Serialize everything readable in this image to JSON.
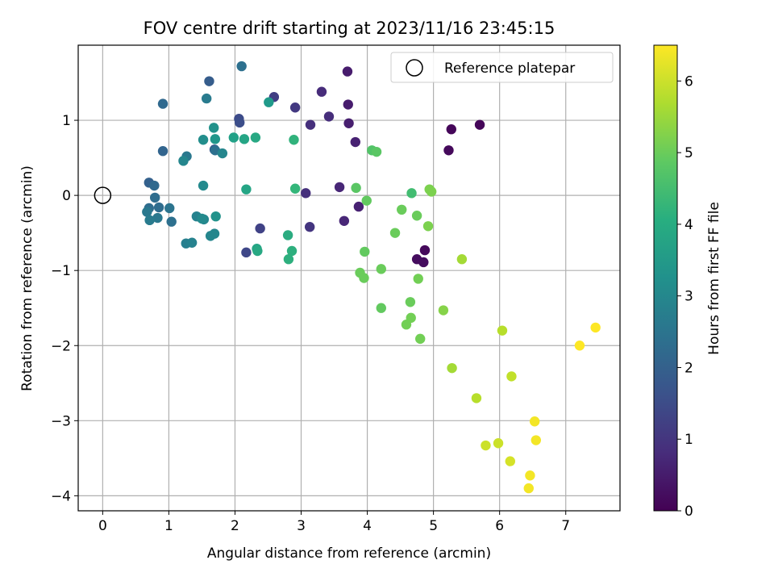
{
  "chart_data": {
    "type": "scatter",
    "title": "FOV centre drift starting at 2023/11/16 23:45:15",
    "xlabel": "Angular distance from reference (arcmin)",
    "ylabel": "Rotation from reference (arcmin)",
    "xlim": [
      -0.37,
      7.82
    ],
    "ylim": [
      -4.2,
      2.0
    ],
    "xticks": [
      0,
      1,
      2,
      3,
      4,
      5,
      6,
      7
    ],
    "yticks": [
      -4,
      -3,
      -2,
      -1,
      0,
      1
    ],
    "grid": true,
    "legend": {
      "placement": "top-right",
      "label": "Reference platepar"
    },
    "reference_point": {
      "x": 0,
      "y": 0
    },
    "colorbar": {
      "label": "Hours from first FF file",
      "colormap": "viridis",
      "range": [
        0,
        6.5
      ],
      "ticks": [
        0,
        1,
        2,
        3,
        4,
        5,
        6
      ]
    },
    "points": [
      {
        "x": 5.27,
        "y": 0.88,
        "c": 0.1
      },
      {
        "x": 5.7,
        "y": 0.94,
        "c": 0.1
      },
      {
        "x": 5.23,
        "y": 0.6,
        "c": 0.15
      },
      {
        "x": 4.87,
        "y": -0.73,
        "c": 0.15
      },
      {
        "x": 4.75,
        "y": -0.85,
        "c": 0.2
      },
      {
        "x": 4.85,
        "y": -0.89,
        "c": 0.2
      },
      {
        "x": 3.7,
        "y": 1.65,
        "c": 0.5
      },
      {
        "x": 3.71,
        "y": 1.21,
        "c": 0.5
      },
      {
        "x": 3.72,
        "y": 0.96,
        "c": 0.55
      },
      {
        "x": 3.82,
        "y": 0.71,
        "c": 0.6
      },
      {
        "x": 3.87,
        "y": -0.15,
        "c": 0.6
      },
      {
        "x": 3.65,
        "y": -0.34,
        "c": 0.7
      },
      {
        "x": 3.58,
        "y": 0.11,
        "c": 0.7
      },
      {
        "x": 3.31,
        "y": 1.38,
        "c": 0.8
      },
      {
        "x": 3.42,
        "y": 1.05,
        "c": 0.85
      },
      {
        "x": 3.14,
        "y": 0.94,
        "c": 0.9
      },
      {
        "x": 3.07,
        "y": 0.03,
        "c": 0.9
      },
      {
        "x": 3.13,
        "y": -0.42,
        "c": 1.0
      },
      {
        "x": 2.91,
        "y": 1.17,
        "c": 1.1
      },
      {
        "x": 2.59,
        "y": 1.31,
        "c": 1.2
      },
      {
        "x": 2.38,
        "y": -0.44,
        "c": 1.3
      },
      {
        "x": 2.17,
        "y": -0.76,
        "c": 1.4
      },
      {
        "x": 2.06,
        "y": 1.02,
        "c": 1.5
      },
      {
        "x": 2.07,
        "y": 0.97,
        "c": 1.55
      },
      {
        "x": 1.61,
        "y": 1.52,
        "c": 1.9
      },
      {
        "x": 1.69,
        "y": 0.61,
        "c": 1.7
      },
      {
        "x": 0.91,
        "y": 1.22,
        "c": 2.2
      },
      {
        "x": 0.91,
        "y": 0.59,
        "c": 2.1
      },
      {
        "x": 0.7,
        "y": 0.17,
        "c": 2.0
      },
      {
        "x": 0.78,
        "y": 0.13,
        "c": 2.2
      },
      {
        "x": 0.79,
        "y": -0.03,
        "c": 2.3
      },
      {
        "x": 0.7,
        "y": -0.17,
        "c": 2.3
      },
      {
        "x": 0.85,
        "y": -0.16,
        "c": 2.3
      },
      {
        "x": 0.67,
        "y": -0.22,
        "c": 2.6
      },
      {
        "x": 0.83,
        "y": -0.3,
        "c": 2.6
      },
      {
        "x": 0.71,
        "y": -0.33,
        "c": 2.7
      },
      {
        "x": 1.01,
        "y": -0.17,
        "c": 2.5
      },
      {
        "x": 1.04,
        "y": -0.35,
        "c": 2.4
      },
      {
        "x": 2.1,
        "y": 1.72,
        "c": 2.4
      },
      {
        "x": 1.57,
        "y": 1.29,
        "c": 2.7
      },
      {
        "x": 1.27,
        "y": 0.52,
        "c": 2.6
      },
      {
        "x": 1.22,
        "y": 0.46,
        "c": 3.0
      },
      {
        "x": 1.7,
        "y": 0.6,
        "c": 2.4
      },
      {
        "x": 1.81,
        "y": 0.56,
        "c": 3.0
      },
      {
        "x": 1.26,
        "y": -0.64,
        "c": 2.8
      },
      {
        "x": 1.35,
        "y": -0.63,
        "c": 2.9
      },
      {
        "x": 1.42,
        "y": -0.28,
        "c": 2.9
      },
      {
        "x": 1.53,
        "y": -0.32,
        "c": 3.0
      },
      {
        "x": 1.5,
        "y": -0.31,
        "c": 3.1
      },
      {
        "x": 1.52,
        "y": 0.13,
        "c": 3.1
      },
      {
        "x": 1.63,
        "y": -0.54,
        "c": 3.0
      },
      {
        "x": 1.69,
        "y": -0.51,
        "c": 3.0
      },
      {
        "x": 1.71,
        "y": -0.28,
        "c": 3.3
      },
      {
        "x": 1.52,
        "y": 0.74,
        "c": 3.2
      },
      {
        "x": 1.68,
        "y": 0.9,
        "c": 3.3
      },
      {
        "x": 1.7,
        "y": 0.75,
        "c": 3.4
      },
      {
        "x": 2.51,
        "y": 1.24,
        "c": 3.5
      },
      {
        "x": 1.98,
        "y": 0.77,
        "c": 3.7
      },
      {
        "x": 2.14,
        "y": 0.75,
        "c": 3.8
      },
      {
        "x": 2.31,
        "y": 0.77,
        "c": 3.9
      },
      {
        "x": 2.17,
        "y": 0.08,
        "c": 3.8
      },
      {
        "x": 2.33,
        "y": -0.71,
        "c": 3.8
      },
      {
        "x": 2.34,
        "y": -0.74,
        "c": 3.9
      },
      {
        "x": 2.8,
        "y": -0.53,
        "c": 4.0
      },
      {
        "x": 2.81,
        "y": -0.85,
        "c": 4.1
      },
      {
        "x": 2.86,
        "y": -0.74,
        "c": 4.1
      },
      {
        "x": 2.89,
        "y": 0.74,
        "c": 4.2
      },
      {
        "x": 2.91,
        "y": 0.09,
        "c": 4.3
      },
      {
        "x": 4.67,
        "y": 0.03,
        "c": 4.5
      },
      {
        "x": 4.07,
        "y": 0.6,
        "c": 4.7
      },
      {
        "x": 4.14,
        "y": 0.58,
        "c": 4.8
      },
      {
        "x": 3.83,
        "y": 0.1,
        "c": 4.8
      },
      {
        "x": 3.99,
        "y": -0.07,
        "c": 4.9
      },
      {
        "x": 3.96,
        "y": -0.75,
        "c": 4.9
      },
      {
        "x": 4.21,
        "y": -0.98,
        "c": 5.0
      },
      {
        "x": 3.89,
        "y": -1.03,
        "c": 5.0
      },
      {
        "x": 3.95,
        "y": -1.1,
        "c": 5.0
      },
      {
        "x": 4.21,
        "y": -1.5,
        "c": 4.9
      },
      {
        "x": 4.52,
        "y": -0.19,
        "c": 5.0
      },
      {
        "x": 4.42,
        "y": -0.5,
        "c": 5.0
      },
      {
        "x": 4.75,
        "y": -0.27,
        "c": 5.0
      },
      {
        "x": 4.77,
        "y": -1.11,
        "c": 5.1
      },
      {
        "x": 4.65,
        "y": -1.42,
        "c": 5.0
      },
      {
        "x": 4.66,
        "y": -1.63,
        "c": 5.1
      },
      {
        "x": 4.59,
        "y": -1.72,
        "c": 5.1
      },
      {
        "x": 4.8,
        "y": -1.91,
        "c": 5.1
      },
      {
        "x": 4.94,
        "y": 0.08,
        "c": 5.2
      },
      {
        "x": 4.97,
        "y": 0.05,
        "c": 5.2
      },
      {
        "x": 4.92,
        "y": -0.41,
        "c": 5.2
      },
      {
        "x": 5.15,
        "y": -1.53,
        "c": 5.3
      },
      {
        "x": 5.43,
        "y": -0.85,
        "c": 5.6
      },
      {
        "x": 5.28,
        "y": -2.3,
        "c": 5.6
      },
      {
        "x": 5.65,
        "y": -2.7,
        "c": 5.8
      },
      {
        "x": 6.04,
        "y": -1.8,
        "c": 5.8
      },
      {
        "x": 6.18,
        "y": -2.41,
        "c": 5.9
      },
      {
        "x": 5.79,
        "y": -3.33,
        "c": 6.0
      },
      {
        "x": 5.98,
        "y": -3.3,
        "c": 6.0
      },
      {
        "x": 6.16,
        "y": -3.54,
        "c": 6.1
      },
      {
        "x": 6.53,
        "y": -3.01,
        "c": 6.4
      },
      {
        "x": 6.55,
        "y": -3.26,
        "c": 6.4
      },
      {
        "x": 6.46,
        "y": -3.73,
        "c": 6.4
      },
      {
        "x": 6.44,
        "y": -3.9,
        "c": 6.4
      },
      {
        "x": 7.21,
        "y": -2.0,
        "c": 6.5
      },
      {
        "x": 7.45,
        "y": -1.76,
        "c": 6.5
      }
    ]
  }
}
